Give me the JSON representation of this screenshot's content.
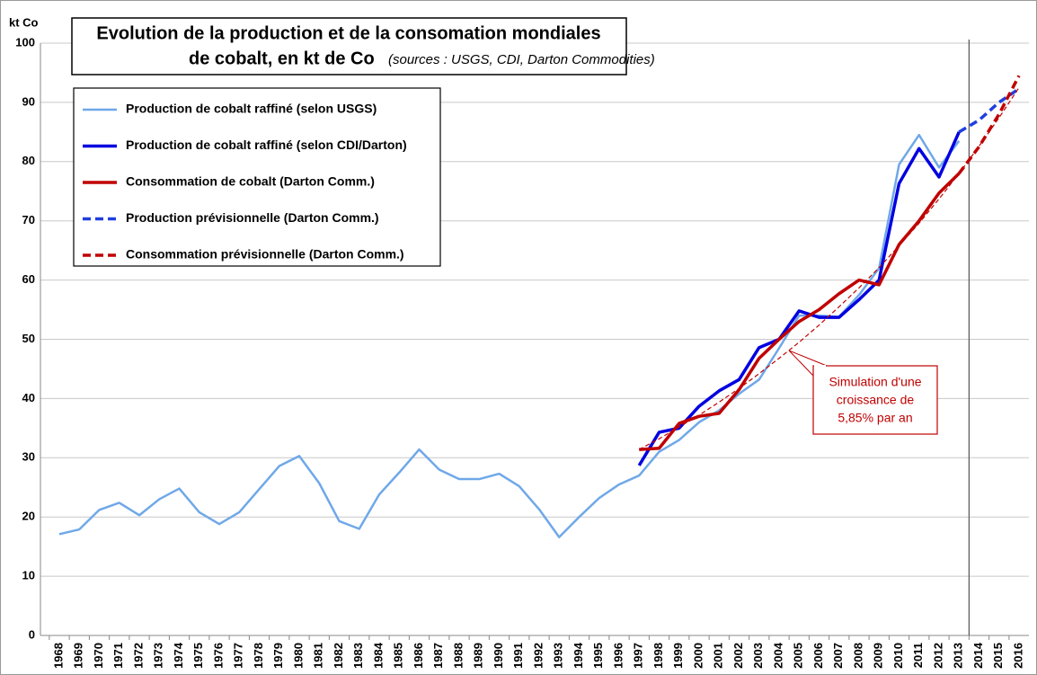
{
  "chart_data": {
    "type": "line",
    "title": [
      "Evolution de la production et de la consomation mondiales",
      "de cobalt, en kt de Co"
    ],
    "subtitle": "(sources : USGS, CDI, Darton Commodities)",
    "y_label": "kt Co",
    "categories": [
      "1968",
      "1969",
      "1970",
      "1971",
      "1972",
      "1973",
      "1974",
      "1975",
      "1976",
      "1977",
      "1978",
      "1979",
      "1980",
      "1981",
      "1982",
      "1983",
      "1984",
      "1985",
      "1986",
      "1987",
      "1988",
      "1989",
      "1990",
      "1991",
      "1992",
      "1993",
      "1994",
      "1995",
      "1996",
      "1997",
      "1998",
      "1999",
      "2000",
      "2001",
      "2002",
      "2003",
      "2004",
      "2005",
      "2006",
      "2007",
      "2008",
      "2009",
      "2010",
      "2011",
      "2012",
      "2013",
      "2014",
      "2015",
      "2016"
    ],
    "series": [
      {
        "name": "Production de cobalt raffiné (selon USGS)",
        "color": "#6fa8e8",
        "dashed": false,
        "width": 2.5,
        "values": [
          17.1,
          17.9,
          21.2,
          22.4,
          20.3,
          23.0,
          24.8,
          20.8,
          18.8,
          20.8,
          24.7,
          28.6,
          30.3,
          25.7,
          19.3,
          18.0,
          23.8,
          27.5,
          31.4,
          28.0,
          26.4,
          26.4,
          27.3,
          25.2,
          21.3,
          16.6,
          20.0,
          23.2,
          25.5,
          27.0,
          31.0,
          33.0,
          36.0,
          38.0,
          40.8,
          43.2,
          48.5,
          54.0,
          54.0,
          53.8,
          57.5,
          62.0,
          79.5,
          84.5,
          79.0,
          83.5,
          null,
          null,
          null
        ]
      },
      {
        "name": "Production de cobalt raffiné (selon CDI/Darton)",
        "color": "#0000e0",
        "dashed": false,
        "width": 3.5,
        "values": [
          null,
          null,
          null,
          null,
          null,
          null,
          null,
          null,
          null,
          null,
          null,
          null,
          null,
          null,
          null,
          null,
          null,
          null,
          null,
          null,
          null,
          null,
          null,
          null,
          null,
          null,
          null,
          null,
          null,
          28.7,
          34.3,
          35.0,
          38.7,
          41.3,
          43.2,
          48.6,
          50.0,
          54.8,
          53.7,
          53.7,
          56.7,
          60.0,
          76.3,
          82.2,
          77.4,
          85.0,
          null,
          null,
          null
        ]
      },
      {
        "name": "Consommation de cobalt (Darton Comm.)",
        "color": "#c00000",
        "dashed": false,
        "width": 3.5,
        "values": [
          null,
          null,
          null,
          null,
          null,
          null,
          null,
          null,
          null,
          null,
          null,
          null,
          null,
          null,
          null,
          null,
          null,
          null,
          null,
          null,
          null,
          null,
          null,
          null,
          null,
          null,
          null,
          null,
          null,
          31.4,
          31.6,
          35.8,
          37.0,
          37.5,
          41.5,
          46.8,
          50.0,
          53.0,
          55.0,
          57.7,
          60.0,
          59.2,
          66.0,
          70.0,
          74.7,
          78.0,
          null,
          null,
          null
        ]
      },
      {
        "name": "Production prévisionnelle (Darton Comm.)",
        "color": "#1f3fe0",
        "dashed": true,
        "width": 3.5,
        "values": [
          null,
          null,
          null,
          null,
          null,
          null,
          null,
          null,
          null,
          null,
          null,
          null,
          null,
          null,
          null,
          null,
          null,
          null,
          null,
          null,
          null,
          null,
          null,
          null,
          null,
          null,
          null,
          null,
          null,
          null,
          null,
          null,
          null,
          null,
          null,
          null,
          null,
          null,
          null,
          null,
          null,
          null,
          null,
          null,
          null,
          85.0,
          87.0,
          90.0,
          92.3
        ]
      },
      {
        "name": "Consommation prévisionnelle (Darton Comm.)",
        "color": "#c00000",
        "dashed": true,
        "width": 3.5,
        "values": [
          null,
          null,
          null,
          null,
          null,
          null,
          null,
          null,
          null,
          null,
          null,
          null,
          null,
          null,
          null,
          null,
          null,
          null,
          null,
          null,
          null,
          null,
          null,
          null,
          null,
          null,
          null,
          null,
          null,
          null,
          null,
          null,
          null,
          null,
          null,
          null,
          null,
          null,
          null,
          null,
          null,
          null,
          null,
          null,
          null,
          78.0,
          82.5,
          88.0,
          94.5
        ]
      },
      {
        "color": "#c00000",
        "dashed": true,
        "width": 1.2,
        "values": [
          null,
          null,
          null,
          null,
          null,
          null,
          null,
          null,
          null,
          null,
          null,
          null,
          null,
          null,
          null,
          null,
          null,
          null,
          null,
          null,
          null,
          null,
          null,
          null,
          null,
          null,
          null,
          null,
          null,
          31.4,
          33.2,
          35.2,
          37.2,
          39.4,
          41.7,
          44.2,
          46.8,
          49.5,
          52.4,
          55.5,
          58.7,
          62.1,
          65.8,
          69.6,
          73.7,
          78.0,
          82.6,
          87.4,
          92.5
        ]
      }
    ],
    "annotation": [
      "Simulation d'une",
      "croissance de",
      "5,85% par an"
    ],
    "vline": "2013",
    "ylim": [
      0,
      100
    ],
    "yticks": [
      0,
      10,
      20,
      30,
      40,
      50,
      60,
      70,
      80,
      90,
      100
    ],
    "grid": true
  }
}
